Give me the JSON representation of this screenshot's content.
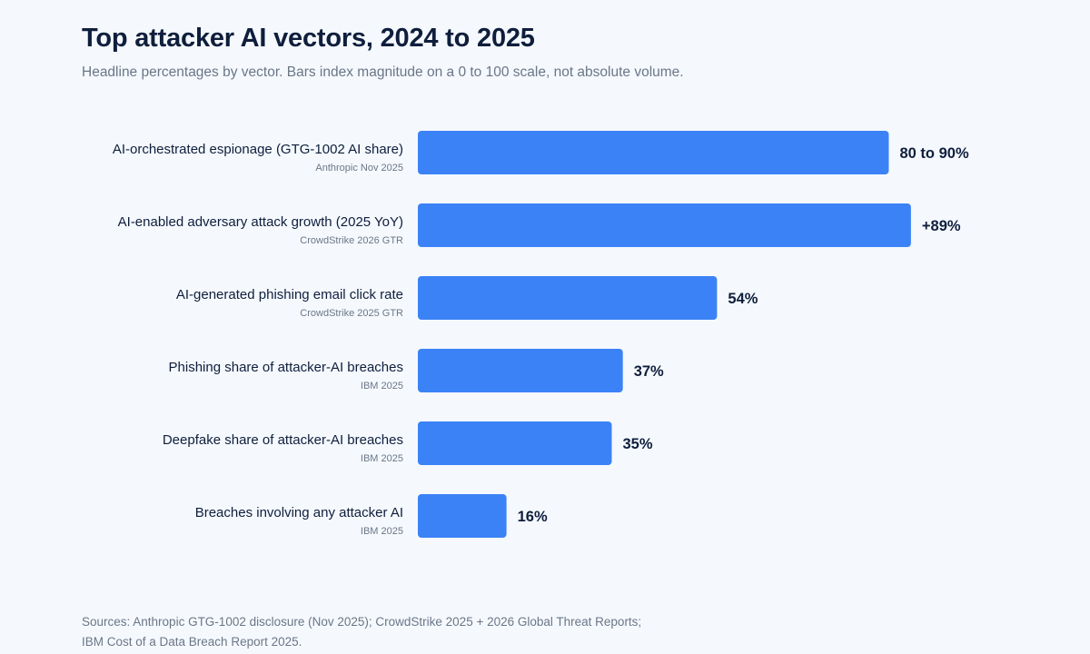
{
  "header": {
    "title": "Top attacker AI vectors, 2024 to 2025",
    "subtitle": "Headline percentages by vector. Bars index magnitude on a 0 to 100 scale, not absolute volume."
  },
  "colors": {
    "bar": "#3b82f6",
    "label": "#0f1e3c",
    "source": "#6b7686",
    "background": "#f5f9fe"
  },
  "chart_data": {
    "type": "bar",
    "orientation": "horizontal",
    "title": "Top attacker AI vectors, 2024 to 2025",
    "subtitle": "Headline percentages by vector. Bars index magnitude on a 0 to 100 scale, not absolute volume.",
    "xlim": [
      0,
      100
    ],
    "grid": false,
    "categories": [
      "AI-orchestrated espionage (GTG-1002 AI share)",
      "AI-enabled adversary attack growth (2025 YoY)",
      "AI-generated phishing email click rate",
      "Phishing share of attacker-AI breaches",
      "Deepfake share of attacker-AI breaches",
      "Breaches involving any attacker AI"
    ],
    "sources": [
      "Anthropic Nov 2025",
      "CrowdStrike 2026 GTR",
      "CrowdStrike 2025 GTR",
      "IBM 2025",
      "IBM 2025",
      "IBM 2025"
    ],
    "values": [
      85,
      89,
      54,
      37,
      35,
      16
    ],
    "value_labels": [
      "80 to 90%",
      "+89%",
      "54%",
      "37%",
      "35%",
      "16%"
    ]
  },
  "footer": {
    "sources_line1": "Sources: Anthropic GTG-1002 disclosure (Nov 2025); CrowdStrike 2025 + 2026 Global Threat Reports;",
    "sources_line2": "IBM Cost of a Data Breach Report 2025."
  }
}
